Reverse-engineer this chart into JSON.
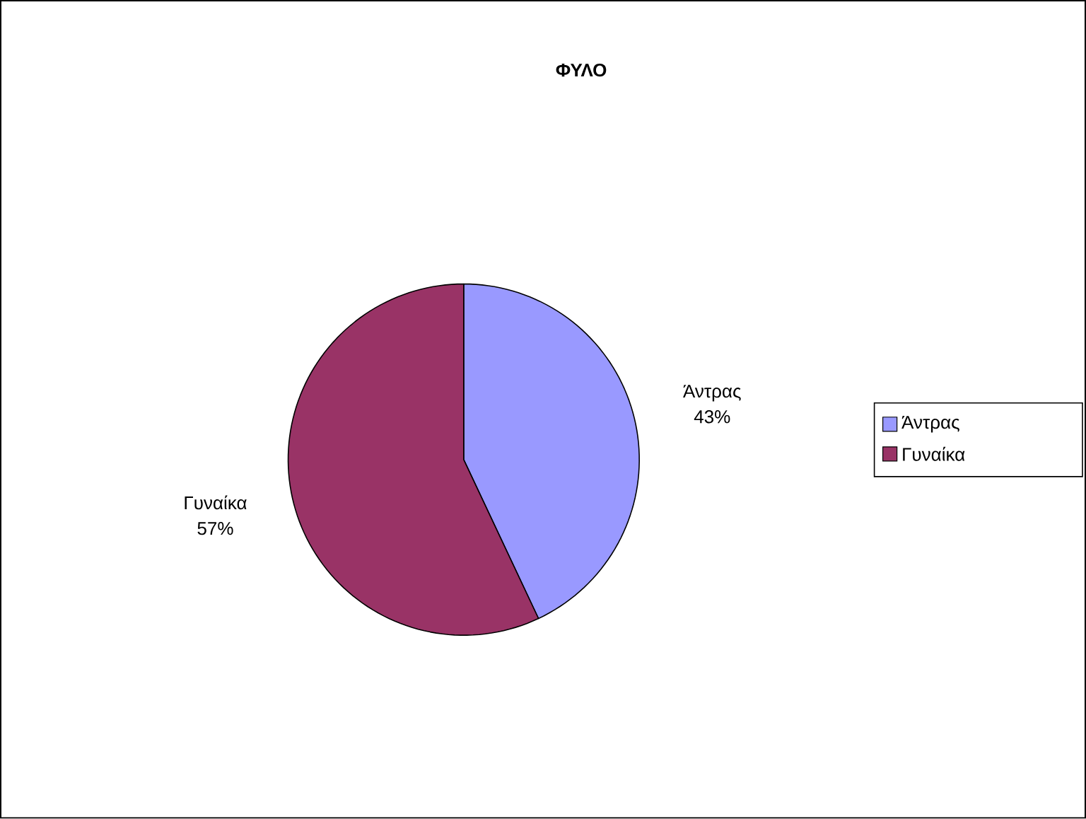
{
  "chart_data": {
    "type": "pie",
    "title": "ΦΥΛΟ",
    "categories": [
      "Άντρας",
      "Γυναίκα"
    ],
    "values": [
      43,
      57
    ],
    "colors": [
      "#9999ff",
      "#993366"
    ],
    "value_labels": [
      "43%",
      "57%"
    ],
    "legend": "right"
  }
}
